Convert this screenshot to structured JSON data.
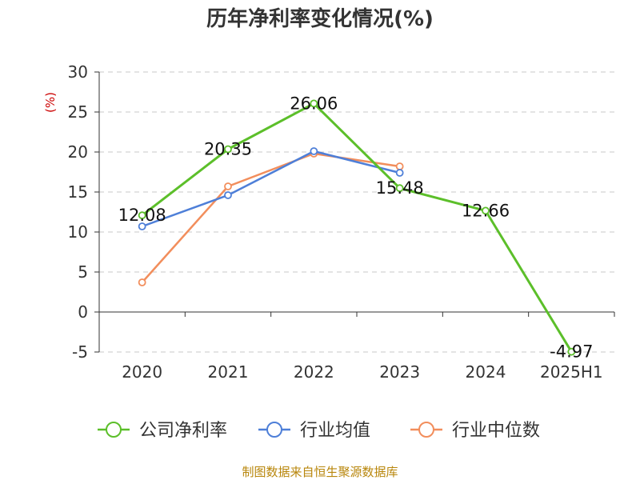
{
  "chart_data": {
    "type": "line",
    "title": "历年净利率变化情况(%)",
    "ylabel": "(%)",
    "xlabel": "",
    "categories": [
      "2020",
      "2021",
      "2022",
      "2023",
      "2024",
      "2025H1"
    ],
    "ylim": [
      -5,
      30
    ],
    "yticks": [
      30,
      25,
      20,
      15,
      10,
      5,
      0,
      -5
    ],
    "grid": true,
    "legend_position": "bottom",
    "series": [
      {
        "name": "公司净利率",
        "color": "#5cbf2a",
        "values": [
          12.08,
          20.35,
          26.06,
          15.48,
          12.66,
          -4.97
        ],
        "labels": [
          "12.08",
          "20.35",
          "26.06",
          "15.48",
          "12.66",
          "-4.97"
        ]
      },
      {
        "name": "行业均值",
        "color": "#4e7fd8",
        "values": [
          10.7,
          14.6,
          20.1,
          17.4,
          null,
          null
        ]
      },
      {
        "name": "行业中位数",
        "color": "#f28e5c",
        "values": [
          3.7,
          15.7,
          19.8,
          18.2,
          null,
          null
        ]
      }
    ],
    "source": "制图数据来自恒生聚源数据库"
  }
}
